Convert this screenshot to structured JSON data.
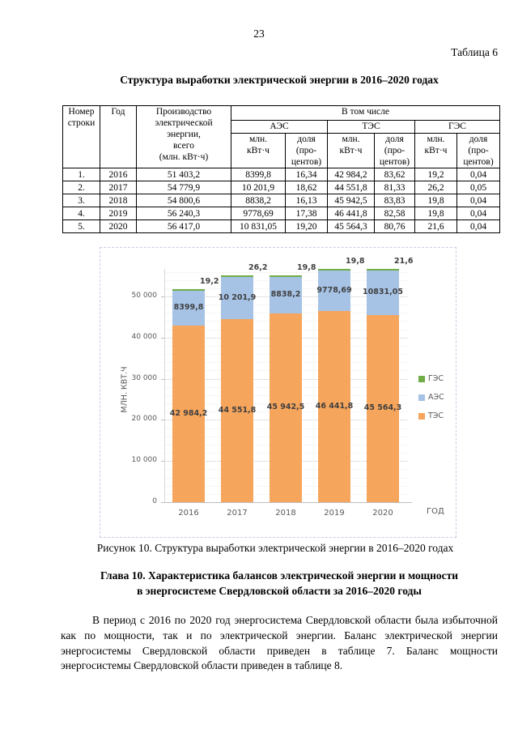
{
  "page_number": "23",
  "table_label": "Таблица 6",
  "doc_title": "Структура выработки электрической энергии в 2016–2020 годах",
  "table": {
    "col_num": "Номер\nстроки",
    "col_year": "Год",
    "col_total": "Производство\nэлектрической\nэнергии,\nвсего\n(млн. кВт·ч)",
    "group_header": "В том числе",
    "groups": [
      "АЭС",
      "ТЭС",
      "ГЭС"
    ],
    "sub_mln": "млн.\nкВт·ч",
    "sub_share": "доля\n(про-\nцентов)",
    "rows": [
      [
        "1.",
        "2016",
        "51 403,2",
        "8399,8",
        "16,34",
        "42 984,2",
        "83,62",
        "19,2",
        "0,04"
      ],
      [
        "2.",
        "2017",
        "54 779,9",
        "10 201,9",
        "18,62",
        "44 551,8",
        "81,33",
        "26,2",
        "0,05"
      ],
      [
        "3.",
        "2018",
        "54 800,6",
        "8838,2",
        "16,13",
        "45 942,5",
        "83,83",
        "19,8",
        "0,04"
      ],
      [
        "4.",
        "2019",
        "56 240,3",
        "9778,69",
        "17,38",
        "46 441,8",
        "82,58",
        "19,8",
        "0,04"
      ],
      [
        "5.",
        "2020",
        "56 417,0",
        "10 831,05",
        "19,20",
        "45 564,3",
        "80,76",
        "21,6",
        "0,04"
      ]
    ]
  },
  "chart_data": {
    "type": "bar",
    "stacked": true,
    "title": "",
    "categories": [
      "2016",
      "2017",
      "2018",
      "2019",
      "2020"
    ],
    "series": [
      {
        "name": "ТЭС",
        "color": "#F6A55C",
        "values": [
          42984.2,
          44551.8,
          45942.5,
          46441.8,
          45564.3
        ],
        "labels": [
          "42 984,2",
          "44 551,8",
          "45 942,5",
          "46 441,8",
          "45 564,3"
        ]
      },
      {
        "name": "АЭС",
        "color": "#A6C3E6",
        "values": [
          8399.8,
          10201.9,
          8838.2,
          9778.69,
          10831.05
        ],
        "labels": [
          "8399,8",
          "10 201,9",
          "8838,2",
          "9778,69",
          "10831,05"
        ]
      },
      {
        "name": "ГЭС",
        "color": "#70AD47",
        "values": [
          19.2,
          26.2,
          19.8,
          19.8,
          21.6
        ],
        "labels": [
          "19,2",
          "26,2",
          "19,8",
          "19,8",
          "21,6"
        ]
      }
    ],
    "xlabel": "ГОД",
    "ylabel": "МЛН. КВТ.Ч",
    "ylim": [
      0,
      57500
    ],
    "yticks": [
      {
        "value": 0,
        "label": "0"
      },
      {
        "value": 10000,
        "label": "10 000"
      },
      {
        "value": 20000,
        "label": "20 000"
      },
      {
        "value": 30000,
        "label": "30 000"
      },
      {
        "value": 40000,
        "label": "40 000"
      },
      {
        "value": 50000,
        "label": "50 000"
      }
    ],
    "grid": "horizontal-dotted",
    "legend_position": "right",
    "legend": [
      {
        "label": "ГЭС",
        "color": "#70AD47"
      },
      {
        "label": "АЭС",
        "color": "#A6C3E6"
      },
      {
        "label": "ТЭС",
        "color": "#F6A55C"
      }
    ]
  },
  "figure_caption": "Рисунок 10. Структура выработки электрической энергии в 2016–2020 годах",
  "chapter_heading": "Глава 10. Характеристика балансов электрической энергии и мощности\nв энергосистеме Свердловской области за 2016–2020 годы",
  "paragraph": "В период с 2016 по 2020 год энергосистема Свердловской области была избыточной как по мощности, так и по электрической энергии. Баланс электрической энергии энергосистемы Свердловской области приведен в таблице 7. Баланс мощности энергосистемы Свердловской области приведен в таблице 8."
}
